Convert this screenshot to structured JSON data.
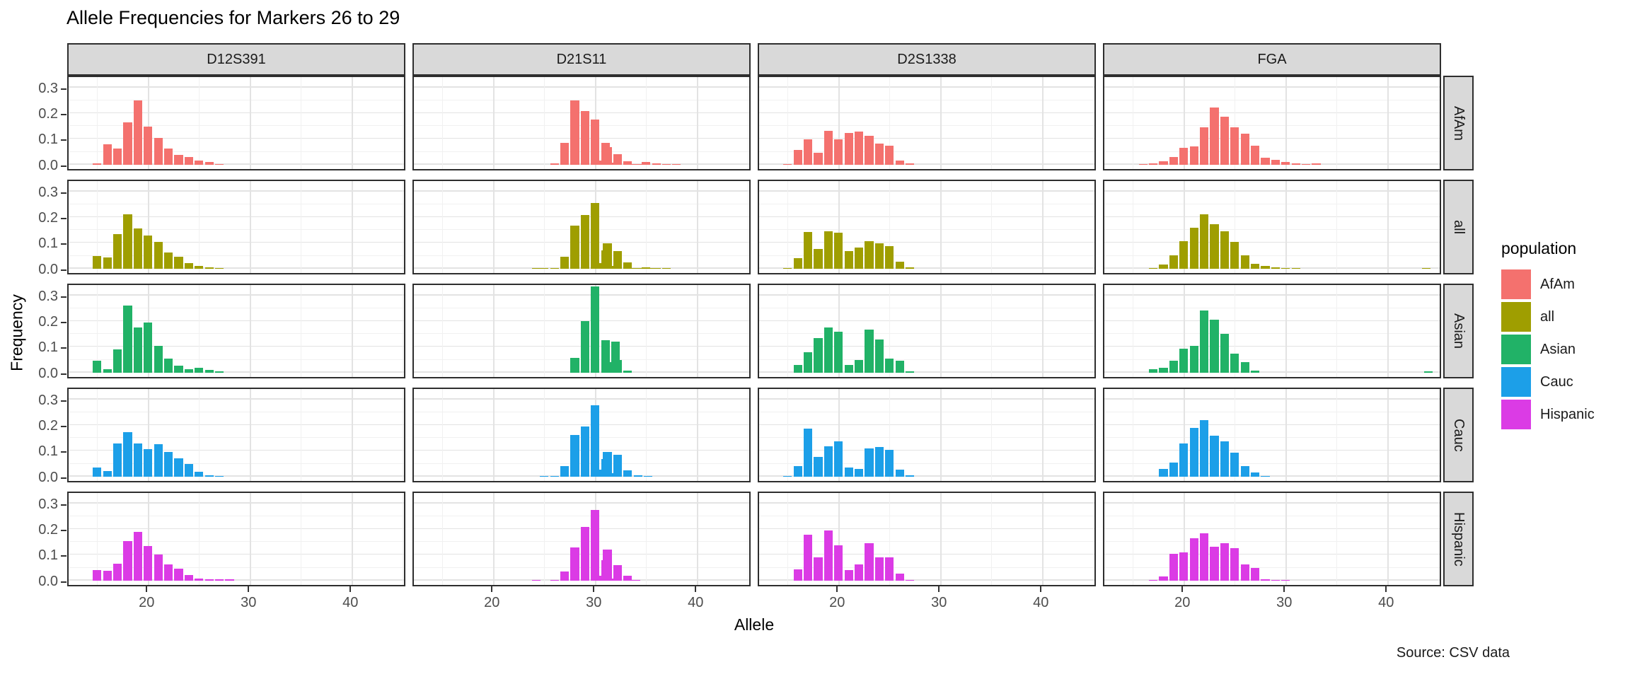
{
  "title": "Allele Frequencies for Markers 26 to 29",
  "caption": "Source: CSV data",
  "axes": {
    "x_label": "Allele",
    "y_label": "Frequency",
    "x_tick_labels": [
      "20",
      "30",
      "40"
    ],
    "y_tick_labels": [
      "0.0",
      "0.1",
      "0.2",
      "0.3"
    ]
  },
  "legend": {
    "title": "population",
    "entries": [
      {
        "label": "AfAm",
        "color": "#F4716E"
      },
      {
        "label": "all",
        "color": "#9F9E00"
      },
      {
        "label": "Asian",
        "color": "#21B267"
      },
      {
        "label": "Cauc",
        "color": "#1C9FE8"
      },
      {
        "label": "Hispanic",
        "color": "#DB3BE5"
      }
    ]
  },
  "chart_data": {
    "type": "bar",
    "title": "Allele Frequencies for Markers 26 to 29",
    "xlabel": "Allele",
    "ylabel": "Frequency",
    "facet_columns": [
      "D12S391",
      "D21S11",
      "D2S1338",
      "FGA"
    ],
    "facet_rows": [
      "AfAm",
      "all",
      "Asian",
      "Cauc",
      "Hispanic"
    ],
    "xlim": [
      12.2,
      45.4
    ],
    "ylim": [
      -0.017,
      0.351
    ],
    "x_major_ticks": [
      20,
      30,
      40
    ],
    "x_minor_gridlines": [
      15,
      25,
      35,
      45
    ],
    "y_major_ticks": [
      0,
      0.1,
      0.2,
      0.3
    ],
    "y_minor_gridlines": [
      0.05,
      0.15,
      0.25,
      0.35
    ],
    "grid": true,
    "legend_position": "right",
    "panels": [
      {
        "population": "AfAm",
        "marker": "D12S391",
        "alleles": [
          15,
          16,
          17,
          18,
          19,
          20,
          21,
          22,
          23,
          24,
          25,
          26,
          27
        ],
        "frequencies": [
          0.005,
          0.078,
          0.064,
          0.165,
          0.25,
          0.147,
          0.105,
          0.063,
          0.037,
          0.029,
          0.015,
          0.01,
          0.003
        ]
      },
      {
        "population": "AfAm",
        "marker": "D21S11",
        "alleles": [
          26,
          27,
          28,
          29,
          30,
          30.2,
          31,
          31.2,
          32,
          32.2,
          33.2,
          34,
          34.2,
          35,
          36,
          37,
          38
        ],
        "frequencies": [
          0.004,
          0.084,
          0.249,
          0.207,
          0.175,
          0.015,
          0.085,
          0.068,
          0.008,
          0.041,
          0.012,
          0.002,
          0.003,
          0.01,
          0.004,
          0.002,
          0.001
        ]
      },
      {
        "population": "AfAm",
        "marker": "D2S1338",
        "alleles": [
          15,
          16,
          17,
          18,
          19,
          20,
          21,
          22,
          23,
          24,
          25,
          26,
          27
        ],
        "frequencies": [
          0.003,
          0.056,
          0.099,
          0.047,
          0.131,
          0.098,
          0.124,
          0.129,
          0.111,
          0.083,
          0.074,
          0.016,
          0.004
        ]
      },
      {
        "population": "AfAm",
        "marker": "FGA",
        "alleles": [
          16,
          17,
          18,
          19,
          20,
          21,
          22,
          23,
          24,
          25,
          26,
          27,
          28,
          29,
          30,
          31,
          32,
          33
        ],
        "frequencies": [
          0.003,
          0.004,
          0.013,
          0.029,
          0.065,
          0.072,
          0.144,
          0.222,
          0.187,
          0.144,
          0.121,
          0.075,
          0.028,
          0.02,
          0.01,
          0.004,
          0.003,
          0.004
        ]
      },
      {
        "population": "all",
        "marker": "D12S391",
        "alleles": [
          15,
          16,
          17,
          18,
          19,
          20,
          21,
          22,
          23,
          24,
          25,
          26,
          27
        ],
        "frequencies": [
          0.05,
          0.044,
          0.135,
          0.21,
          0.155,
          0.13,
          0.105,
          0.062,
          0.045,
          0.022,
          0.01,
          0.004,
          0.003
        ]
      },
      {
        "population": "all",
        "marker": "D21S11",
        "alleles": [
          24.2,
          25,
          26,
          27,
          28,
          29,
          30,
          30.2,
          31,
          31.2,
          32,
          32.2,
          33.2,
          34,
          34.2,
          35,
          35.2,
          36,
          37
        ],
        "frequencies": [
          0.001,
          0.002,
          0.002,
          0.045,
          0.166,
          0.208,
          0.256,
          0.022,
          0.071,
          0.099,
          0.011,
          0.068,
          0.024,
          0.002,
          0.002,
          0.004,
          0.001,
          0.001,
          0.001
        ]
      },
      {
        "population": "all",
        "marker": "D2S1338",
        "alleles": [
          15,
          16,
          17,
          18,
          19,
          20,
          21,
          22,
          23,
          24,
          25,
          26,
          27
        ],
        "frequencies": [
          0.002,
          0.042,
          0.143,
          0.076,
          0.144,
          0.139,
          0.067,
          0.082,
          0.106,
          0.099,
          0.087,
          0.027,
          0.006
        ]
      },
      {
        "population": "all",
        "marker": "FGA",
        "alleles": [
          17,
          18,
          19,
          20,
          21,
          22,
          23,
          24,
          25,
          26,
          27,
          28,
          29,
          30,
          31,
          43.8
        ],
        "frequencies": [
          0.002,
          0.015,
          0.053,
          0.106,
          0.158,
          0.212,
          0.172,
          0.144,
          0.104,
          0.052,
          0.02,
          0.01,
          0.004,
          0.002,
          0.001,
          0.002
        ]
      },
      {
        "population": "Asian",
        "marker": "D12S391",
        "alleles": [
          15,
          16,
          17,
          18,
          19,
          20,
          21,
          22,
          23,
          24,
          25,
          26,
          27
        ],
        "frequencies": [
          0.045,
          0.012,
          0.09,
          0.26,
          0.175,
          0.195,
          0.105,
          0.055,
          0.027,
          0.013,
          0.02,
          0.01,
          0.006
        ]
      },
      {
        "population": "Asian",
        "marker": "D21S11",
        "alleles": [
          28,
          29,
          30,
          31,
          31.2,
          32,
          32.2,
          33.2
        ],
        "frequencies": [
          0.056,
          0.201,
          0.334,
          0.126,
          0.042,
          0.12,
          0.05,
          0.008
        ]
      },
      {
        "population": "Asian",
        "marker": "D2S1338",
        "alleles": [
          16,
          17,
          18,
          19,
          20,
          21,
          22,
          23,
          24,
          25,
          26,
          27
        ],
        "frequencies": [
          0.03,
          0.08,
          0.135,
          0.175,
          0.16,
          0.03,
          0.048,
          0.168,
          0.13,
          0.055,
          0.045,
          0.005
        ]
      },
      {
        "population": "Asian",
        "marker": "FGA",
        "alleles": [
          17,
          18,
          19,
          20,
          21,
          22,
          23,
          24,
          25,
          26,
          27,
          44
        ],
        "frequencies": [
          0.012,
          0.02,
          0.046,
          0.094,
          0.105,
          0.24,
          0.205,
          0.151,
          0.075,
          0.042,
          0.008,
          0.005
        ]
      },
      {
        "population": "Cauc",
        "marker": "D12S391",
        "alleles": [
          15,
          16,
          17,
          18,
          19,
          20,
          21,
          22,
          23,
          24,
          25,
          26,
          27
        ],
        "frequencies": [
          0.035,
          0.022,
          0.129,
          0.173,
          0.129,
          0.108,
          0.127,
          0.095,
          0.071,
          0.05,
          0.019,
          0.005,
          0.003
        ]
      },
      {
        "population": "Cauc",
        "marker": "D21S11",
        "alleles": [
          25,
          26,
          27,
          28,
          29,
          30,
          30.2,
          31,
          31.2,
          32,
          32.2,
          33.2,
          34.2,
          35.2
        ],
        "frequencies": [
          0.002,
          0.002,
          0.04,
          0.161,
          0.195,
          0.278,
          0.027,
          0.068,
          0.097,
          0.014,
          0.084,
          0.024,
          0.004,
          0.002
        ]
      },
      {
        "population": "Cauc",
        "marker": "D2S1338",
        "alleles": [
          15,
          16,
          17,
          18,
          19,
          20,
          21,
          22,
          23,
          24,
          25,
          26,
          27
        ],
        "frequencies": [
          0.003,
          0.04,
          0.185,
          0.077,
          0.118,
          0.138,
          0.034,
          0.03,
          0.11,
          0.116,
          0.104,
          0.028,
          0.005
        ]
      },
      {
        "population": "Cauc",
        "marker": "FGA",
        "alleles": [
          18,
          19,
          20,
          21,
          22,
          23,
          24,
          25,
          26,
          27,
          28
        ],
        "frequencies": [
          0.029,
          0.054,
          0.128,
          0.188,
          0.218,
          0.159,
          0.137,
          0.093,
          0.042,
          0.015,
          0.003
        ]
      },
      {
        "population": "Hispanic",
        "marker": "D12S391",
        "alleles": [
          15,
          16,
          17,
          18,
          19,
          20,
          21,
          22,
          23,
          24,
          25,
          26,
          27,
          28
        ],
        "frequencies": [
          0.042,
          0.037,
          0.066,
          0.154,
          0.189,
          0.135,
          0.1,
          0.064,
          0.047,
          0.022,
          0.009,
          0.006,
          0.005,
          0.004
        ]
      },
      {
        "population": "Hispanic",
        "marker": "D21S11",
        "alleles": [
          24.2,
          26,
          27,
          28,
          29,
          30,
          30.2,
          31,
          31.2,
          32,
          32.2,
          33.2,
          34
        ],
        "frequencies": [
          0.003,
          0.002,
          0.035,
          0.128,
          0.208,
          0.275,
          0.019,
          0.079,
          0.121,
          0.009,
          0.06,
          0.02,
          0.002
        ]
      },
      {
        "population": "Hispanic",
        "marker": "D2S1338",
        "alleles": [
          16,
          17,
          18,
          19,
          20,
          21,
          22,
          23,
          24,
          25,
          26,
          27
        ],
        "frequencies": [
          0.044,
          0.177,
          0.09,
          0.195,
          0.137,
          0.041,
          0.063,
          0.144,
          0.091,
          0.09,
          0.026,
          0.003
        ]
      },
      {
        "population": "Hispanic",
        "marker": "FGA",
        "alleles": [
          17,
          18,
          19,
          20,
          21,
          22,
          23,
          24,
          25,
          26,
          27,
          28,
          29,
          30
        ],
        "frequencies": [
          0.003,
          0.015,
          0.105,
          0.11,
          0.165,
          0.184,
          0.131,
          0.146,
          0.126,
          0.064,
          0.05,
          0.006,
          0.003,
          0.003
        ]
      }
    ]
  }
}
